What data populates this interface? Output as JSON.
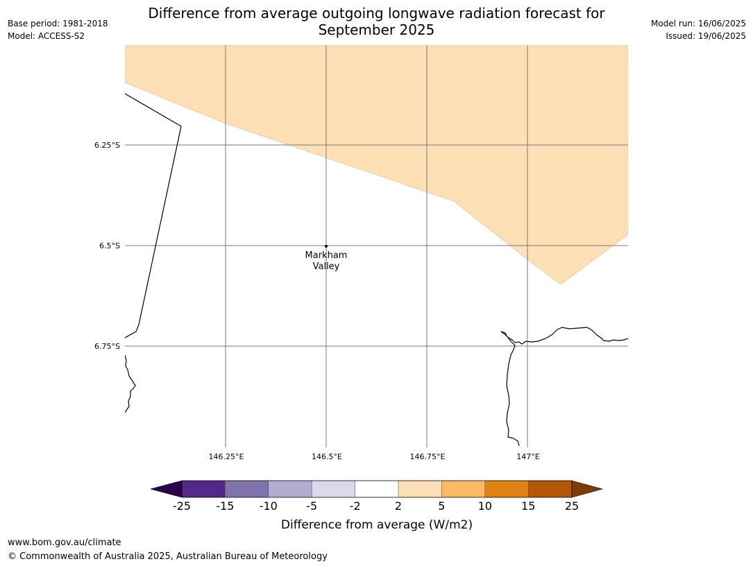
{
  "title_line1": "Difference from average outgoing longwave radiation forecast for",
  "title_line2": "September 2025",
  "base_period": "Base period: 1981-2018",
  "model": "Model: ACCESS-S2",
  "model_run": "Model run: 16/06/2025",
  "issued": "Issued: 19/06/2025",
  "map": {
    "lon_ticks": [
      "146.25°E",
      "146.5°E",
      "146.75°E",
      "147°E"
    ],
    "lat_ticks": [
      "6.25°S",
      "6.5°S",
      "6.75°S"
    ],
    "place_name_line1": "Markham",
    "place_name_line2": "Valley",
    "anomaly_fill_color": "#fde0b6"
  },
  "colorbar": {
    "title": "Difference from average (W/m2)",
    "labels": [
      "-25",
      "-15",
      "-10",
      "-5",
      "-2",
      "2",
      "5",
      "10",
      "15",
      "25"
    ],
    "colors": [
      "#2d004b",
      "#542788",
      "#8073ac",
      "#b2abd2",
      "#d8daeb",
      "#ffffff",
      "#fee0b6",
      "#fdb863",
      "#e08214",
      "#b35806",
      "#7f3b08"
    ]
  },
  "footer_url": "www.bom.gov.au/climate",
  "footer_copyright": "© Commonwealth of Australia 2025, Australian Bureau of Meteorology"
}
